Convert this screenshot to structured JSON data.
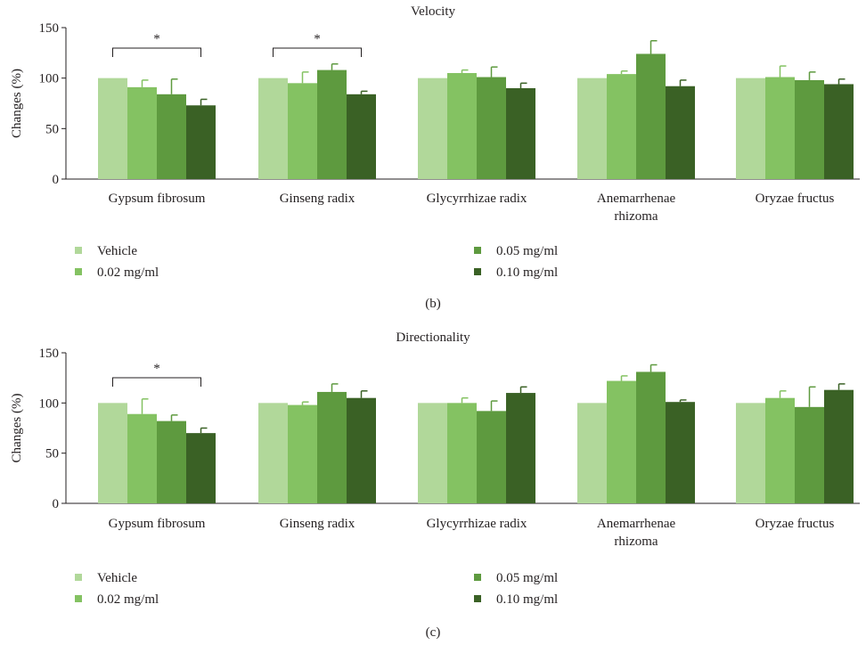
{
  "colors": [
    "#b1d89a",
    "#84c262",
    "#5e9a3f",
    "#3a6125"
  ],
  "chart_data": [
    {
      "type": "bar",
      "title": "Velocity",
      "panel_label": "(b)",
      "ylabel": "Changes (%)",
      "ylim": [
        0,
        150
      ],
      "yticks": [
        0,
        50,
        100,
        150
      ],
      "categories": [
        [
          "Gypsum fibrosum"
        ],
        [
          "Ginseng radix"
        ],
        [
          "Glycyrrhizae radix"
        ],
        [
          "Anemarrhenae",
          "rhizoma"
        ],
        [
          "Oryzae fructus"
        ]
      ],
      "series": [
        {
          "name": "Vehicle",
          "values": [
            100,
            100,
            100,
            100,
            100
          ],
          "errors": [
            0,
            0,
            0,
            0,
            0
          ]
        },
        {
          "name": "0.02 mg/ml",
          "values": [
            91,
            95,
            105,
            104,
            101
          ],
          "errors": [
            7,
            11,
            3,
            3,
            11
          ]
        },
        {
          "name": "0.05 mg/ml",
          "values": [
            84,
            108,
            101,
            124,
            98
          ],
          "errors": [
            15,
            6,
            10,
            13,
            8
          ]
        },
        {
          "name": "0.10 mg/ml",
          "values": [
            73,
            84,
            90,
            92,
            94
          ],
          "errors": [
            6,
            3,
            5,
            6,
            5
          ]
        }
      ],
      "significance": [
        {
          "category": 0,
          "label": "*"
        },
        {
          "category": 1,
          "label": "*"
        }
      ],
      "legend": "bottom"
    },
    {
      "type": "bar",
      "title": "Directionality",
      "panel_label": "(c)",
      "ylabel": "Changes (%)",
      "ylim": [
        0,
        150
      ],
      "yticks": [
        0,
        50,
        100,
        150
      ],
      "categories": [
        [
          "Gypsum fibrosum"
        ],
        [
          "Ginseng radix"
        ],
        [
          "Glycyrrhizae radix"
        ],
        [
          "Anemarrhenae",
          "rhizoma"
        ],
        [
          "Oryzae fructus"
        ]
      ],
      "series": [
        {
          "name": "Vehicle",
          "values": [
            100,
            100,
            100,
            100,
            100
          ],
          "errors": [
            0,
            0,
            0,
            0,
            0
          ]
        },
        {
          "name": "0.02 mg/ml",
          "values": [
            89,
            98,
            100,
            122,
            105
          ],
          "errors": [
            15,
            3,
            5,
            5,
            7
          ]
        },
        {
          "name": "0.05 mg/ml",
          "values": [
            82,
            111,
            92,
            131,
            96
          ],
          "errors": [
            6,
            8,
            10,
            7,
            20
          ]
        },
        {
          "name": "0.10 mg/ml",
          "values": [
            70,
            105,
            110,
            101,
            113
          ],
          "errors": [
            5,
            7,
            6,
            2,
            6
          ]
        }
      ],
      "significance": [
        {
          "category": 0,
          "label": "*"
        }
      ],
      "legend": "bottom"
    }
  ]
}
